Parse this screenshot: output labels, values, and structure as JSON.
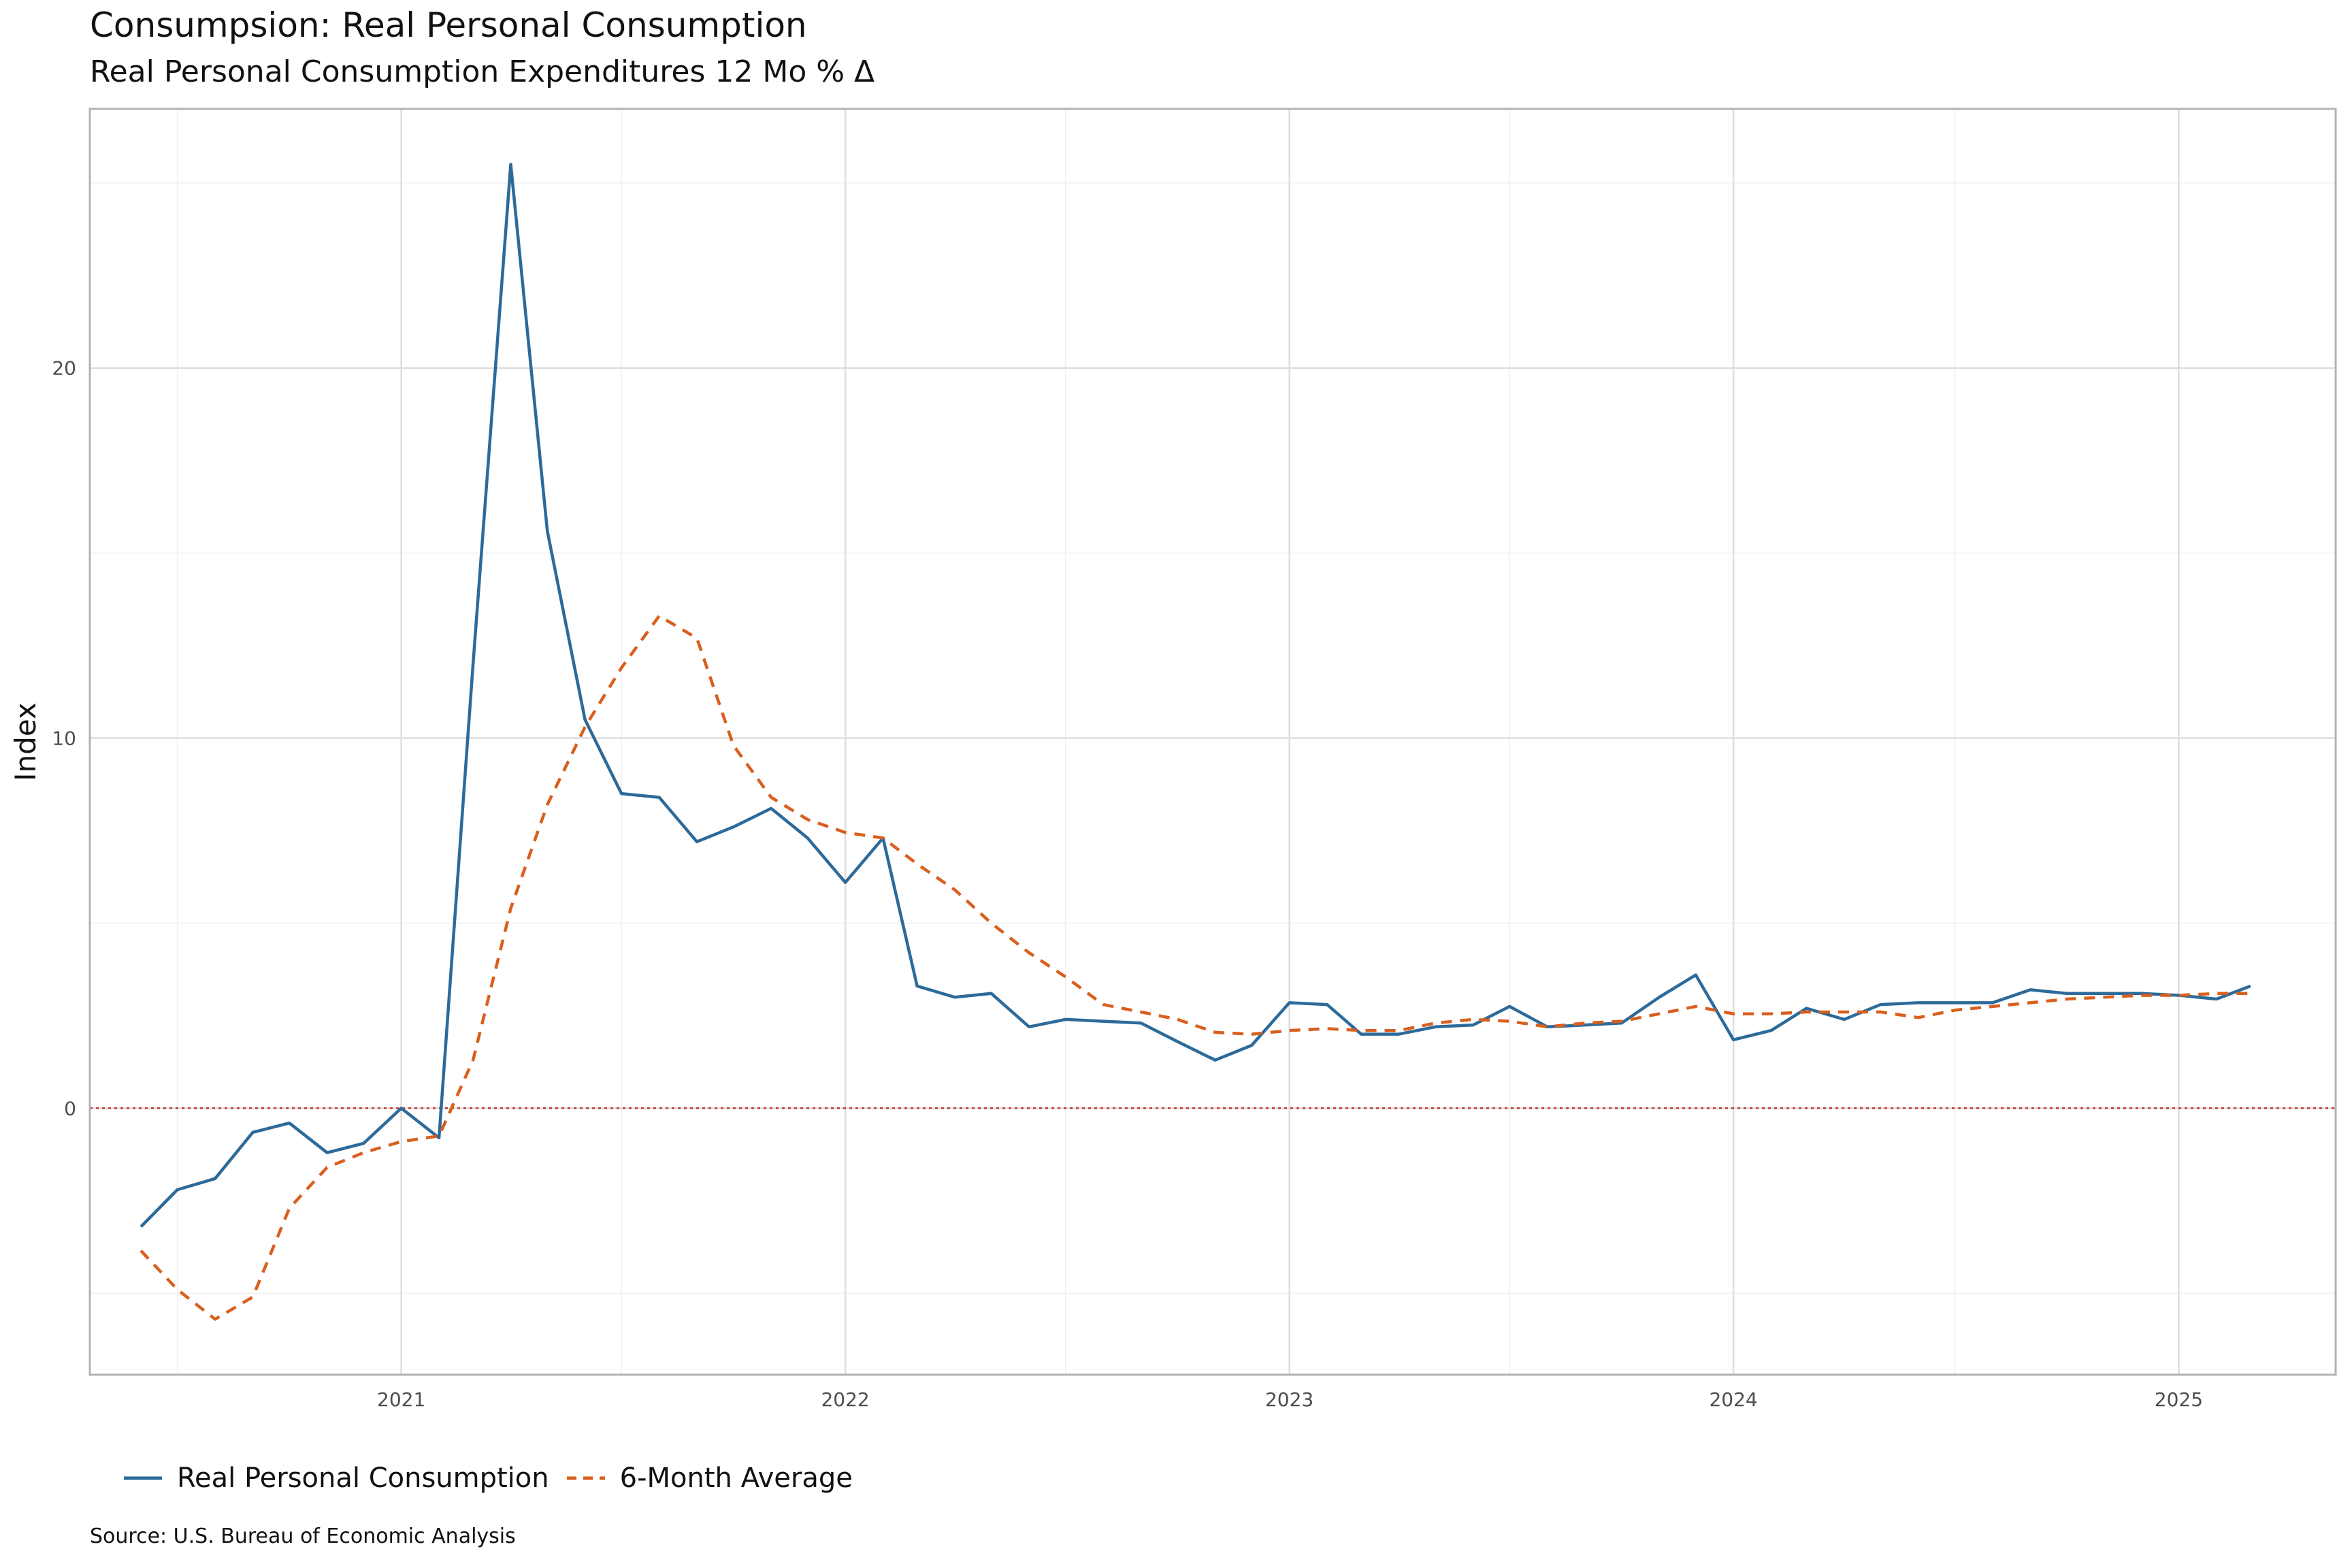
{
  "header": {
    "title": "Consumpsion: Real Personal Consumption",
    "subtitle": "Real Personal Consumption Expenditures 12 Mo % Δ"
  },
  "footer": {
    "source": "Source:  U.S. Bureau of Economic Analysis"
  },
  "legend": {
    "items": [
      {
        "label": "Real Personal Consumption",
        "color": "#2c6a9a",
        "style": "solid"
      },
      {
        "label": "6-Month Average",
        "color": "#d95f1e",
        "style": "dashed"
      }
    ]
  },
  "chart_data": {
    "type": "line",
    "ylabel": "Index",
    "xlabel": "",
    "ylim": [
      -7.2,
      27
    ],
    "xlim": [
      "2020-04-20",
      "2025-05-10"
    ],
    "x_ticks": [
      "2021",
      "2022",
      "2023",
      "2024",
      "2025"
    ],
    "y_ticks": [
      0,
      10,
      20
    ],
    "reference_line": {
      "y": 0,
      "color": "#c0392b",
      "style": "dotted"
    },
    "grid": true,
    "legend_position": "bottom-left",
    "series": [
      {
        "name": "Real Personal Consumption",
        "color": "#2c6a9a",
        "style": "solid",
        "points": [
          [
            "2020-06",
            -3.2
          ],
          [
            "2020-07",
            -2.2
          ],
          [
            "2020-08",
            -1.9
          ],
          [
            "2020-09",
            -0.65
          ],
          [
            "2020-10",
            -0.4
          ],
          [
            "2020-11",
            -1.2
          ],
          [
            "2020-12",
            -0.95
          ],
          [
            "2021-01",
            0.0
          ],
          [
            "2021-02",
            -0.8
          ],
          [
            "2021-03",
            12.0
          ],
          [
            "2021-04",
            25.5
          ],
          [
            "2021-05",
            15.6
          ],
          [
            "2021-06",
            10.5
          ],
          [
            "2021-07",
            8.5
          ],
          [
            "2021-08",
            8.4
          ],
          [
            "2021-09",
            7.2
          ],
          [
            "2021-10",
            7.6
          ],
          [
            "2021-11",
            8.1
          ],
          [
            "2021-12",
            7.3
          ],
          [
            "2022-01",
            6.1
          ],
          [
            "2022-02",
            7.3
          ],
          [
            "2022-03",
            3.3
          ],
          [
            "2022-04",
            3.0
          ],
          [
            "2022-05",
            3.1
          ],
          [
            "2022-06",
            2.2
          ],
          [
            "2022-07",
            2.4
          ],
          [
            "2022-08",
            2.35
          ],
          [
            "2022-09",
            2.3
          ],
          [
            "2022-10",
            1.8
          ],
          [
            "2022-11",
            1.3
          ],
          [
            "2022-12",
            1.7
          ],
          [
            "2023-01",
            2.85
          ],
          [
            "2023-02",
            2.8
          ],
          [
            "2023-03",
            2.0
          ],
          [
            "2023-04",
            2.0
          ],
          [
            "2023-05",
            2.2
          ],
          [
            "2023-06",
            2.25
          ],
          [
            "2023-07",
            2.75
          ],
          [
            "2023-08",
            2.2
          ],
          [
            "2023-09",
            2.25
          ],
          [
            "2023-10",
            2.3
          ],
          [
            "2023-11",
            3.0
          ],
          [
            "2023-12",
            3.6
          ],
          [
            "2024-01",
            1.85
          ],
          [
            "2024-02",
            2.1
          ],
          [
            "2024-03",
            2.7
          ],
          [
            "2024-04",
            2.4
          ],
          [
            "2024-05",
            2.8
          ],
          [
            "2024-06",
            2.85
          ],
          [
            "2024-07",
            2.85
          ],
          [
            "2024-08",
            2.85
          ],
          [
            "2024-09",
            3.2
          ],
          [
            "2024-10",
            3.1
          ],
          [
            "2024-11",
            3.1
          ],
          [
            "2024-12",
            3.1
          ],
          [
            "2025-01",
            3.05
          ],
          [
            "2025-02",
            2.95
          ],
          [
            "2025-03",
            3.3
          ]
        ]
      },
      {
        "name": "6-Month Average",
        "color": "#d95f1e",
        "style": "dashed",
        "points": [
          [
            "2020-06",
            -3.85
          ],
          [
            "2020-07",
            -4.9
          ],
          [
            "2020-08",
            -5.7
          ],
          [
            "2020-09",
            -5.1
          ],
          [
            "2020-10",
            -2.7
          ],
          [
            "2020-11",
            -1.6
          ],
          [
            "2020-12",
            -1.2
          ],
          [
            "2021-01",
            -0.9
          ],
          [
            "2021-02",
            -0.75
          ],
          [
            "2021-03",
            1.3
          ],
          [
            "2021-04",
            5.4
          ],
          [
            "2021-05",
            8.2
          ],
          [
            "2021-06",
            10.3
          ],
          [
            "2021-07",
            11.9
          ],
          [
            "2021-08",
            13.3
          ],
          [
            "2021-09",
            12.7
          ],
          [
            "2021-10",
            9.8
          ],
          [
            "2021-11",
            8.4
          ],
          [
            "2021-12",
            7.8
          ],
          [
            "2022-01",
            7.45
          ],
          [
            "2022-02",
            7.3
          ],
          [
            "2022-03",
            6.6
          ],
          [
            "2022-04",
            5.9
          ],
          [
            "2022-05",
            5.0
          ],
          [
            "2022-06",
            4.2
          ],
          [
            "2022-07",
            3.55
          ],
          [
            "2022-08",
            2.8
          ],
          [
            "2022-09",
            2.6
          ],
          [
            "2022-10",
            2.4
          ],
          [
            "2022-11",
            2.05
          ],
          [
            "2022-12",
            2.0
          ],
          [
            "2023-01",
            2.1
          ],
          [
            "2023-02",
            2.15
          ],
          [
            "2023-03",
            2.1
          ],
          [
            "2023-04",
            2.1
          ],
          [
            "2023-05",
            2.3
          ],
          [
            "2023-06",
            2.4
          ],
          [
            "2023-07",
            2.35
          ],
          [
            "2023-08",
            2.2
          ],
          [
            "2023-09",
            2.3
          ],
          [
            "2023-10",
            2.35
          ],
          [
            "2023-11",
            2.55
          ],
          [
            "2023-12",
            2.75
          ],
          [
            "2024-01",
            2.55
          ],
          [
            "2024-02",
            2.55
          ],
          [
            "2024-03",
            2.6
          ],
          [
            "2024-04",
            2.6
          ],
          [
            "2024-05",
            2.6
          ],
          [
            "2024-06",
            2.45
          ],
          [
            "2024-07",
            2.65
          ],
          [
            "2024-08",
            2.75
          ],
          [
            "2024-09",
            2.85
          ],
          [
            "2024-10",
            2.95
          ],
          [
            "2024-11",
            3.0
          ],
          [
            "2024-12",
            3.05
          ],
          [
            "2025-01",
            3.05
          ],
          [
            "2025-02",
            3.1
          ],
          [
            "2025-03",
            3.1
          ]
        ]
      }
    ]
  }
}
